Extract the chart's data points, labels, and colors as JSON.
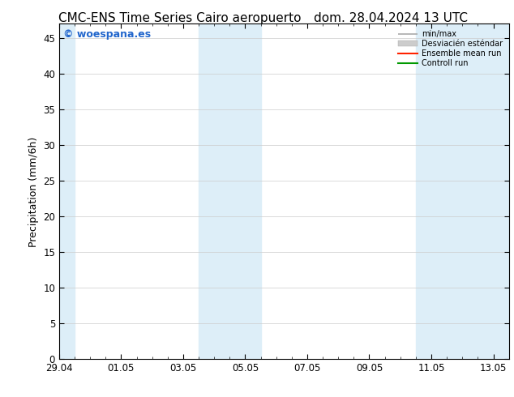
{
  "title_left": "CMC-ENS Time Series Cairo aeropuerto",
  "title_right": "dom. 28.04.2024 13 UTC",
  "ylabel": "Precipitation (mm/6h)",
  "ylim": [
    0,
    47
  ],
  "yticks": [
    0,
    5,
    10,
    15,
    20,
    25,
    30,
    35,
    40,
    45
  ],
  "xtick_labels": [
    "29.04",
    "01.05",
    "03.05",
    "05.05",
    "07.05",
    "09.05",
    "11.05",
    "13.05"
  ],
  "xtick_positions": [
    0,
    2,
    4,
    6,
    8,
    10,
    12,
    14
  ],
  "xlim": [
    0,
    14.5
  ],
  "background_color": "#ffffff",
  "plot_bg_color": "#ffffff",
  "shaded_bands": [
    {
      "xmin": -0.5,
      "xmax": 0.5
    },
    {
      "xmin": 4.5,
      "xmax": 6.5
    },
    {
      "xmin": 11.5,
      "xmax": 14.5
    }
  ],
  "shaded_color": "#ddeef8",
  "watermark": "© woespana.es",
  "watermark_color": "#2266cc",
  "legend_minmax_color": "#aaaaaa",
  "legend_std_color": "#cccccc",
  "legend_ens_color": "#ff2200",
  "legend_ctrl_color": "#009900",
  "title_fontsize": 11,
  "axis_label_fontsize": 9,
  "tick_fontsize": 8.5,
  "grid_color": "#cccccc",
  "spine_color": "#000000"
}
